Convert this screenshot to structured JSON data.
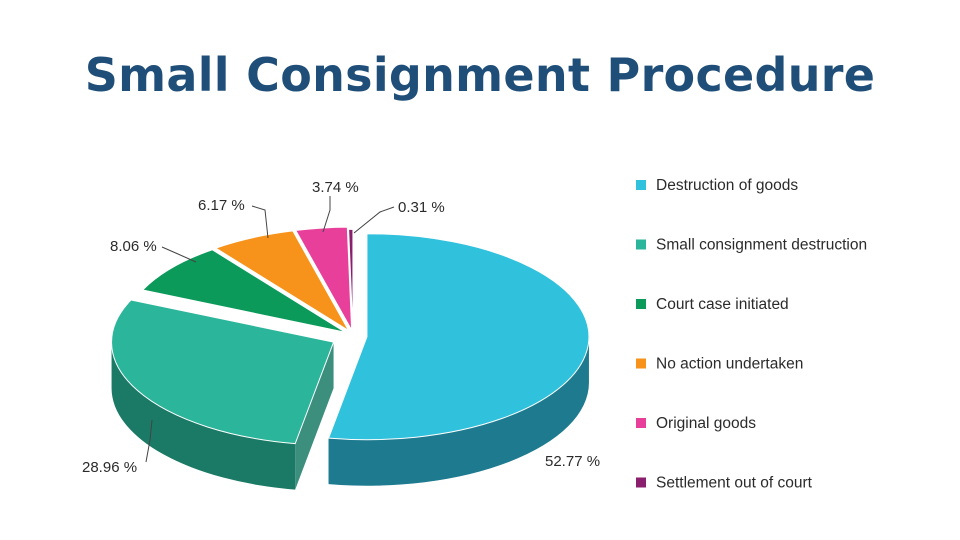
{
  "chart_data": {
    "type": "pie",
    "title": "Small Consignment Procedure",
    "legend_position": "right",
    "slices": [
      {
        "label": "Destruction of goods",
        "value": 52.77,
        "value_label": "52.77 %",
        "color": "#30c1dc",
        "side_color": "#1d7a8f"
      },
      {
        "label": "Small consignment destruction",
        "value": 28.96,
        "value_label": "28.96 %",
        "color": "#2bb59a",
        "side_color": "#1a7a66"
      },
      {
        "label": "Court case initiated",
        "value": 8.06,
        "value_label": "8.06 %",
        "color": "#0b9a5a",
        "side_color": "#076b3e"
      },
      {
        "label": "No action undertaken",
        "value": 6.17,
        "value_label": "6.17 %",
        "color": "#f7931a",
        "side_color": "#b0650e"
      },
      {
        "label": "Original goods",
        "value": 3.74,
        "value_label": "3.74 %",
        "color": "#e8409a",
        "side_color": "#a02a69"
      },
      {
        "label": "Settlement out of court",
        "value": 0.31,
        "value_label": "0.31 %",
        "color": "#8a1f6e",
        "side_color": "#5a1449"
      }
    ]
  }
}
